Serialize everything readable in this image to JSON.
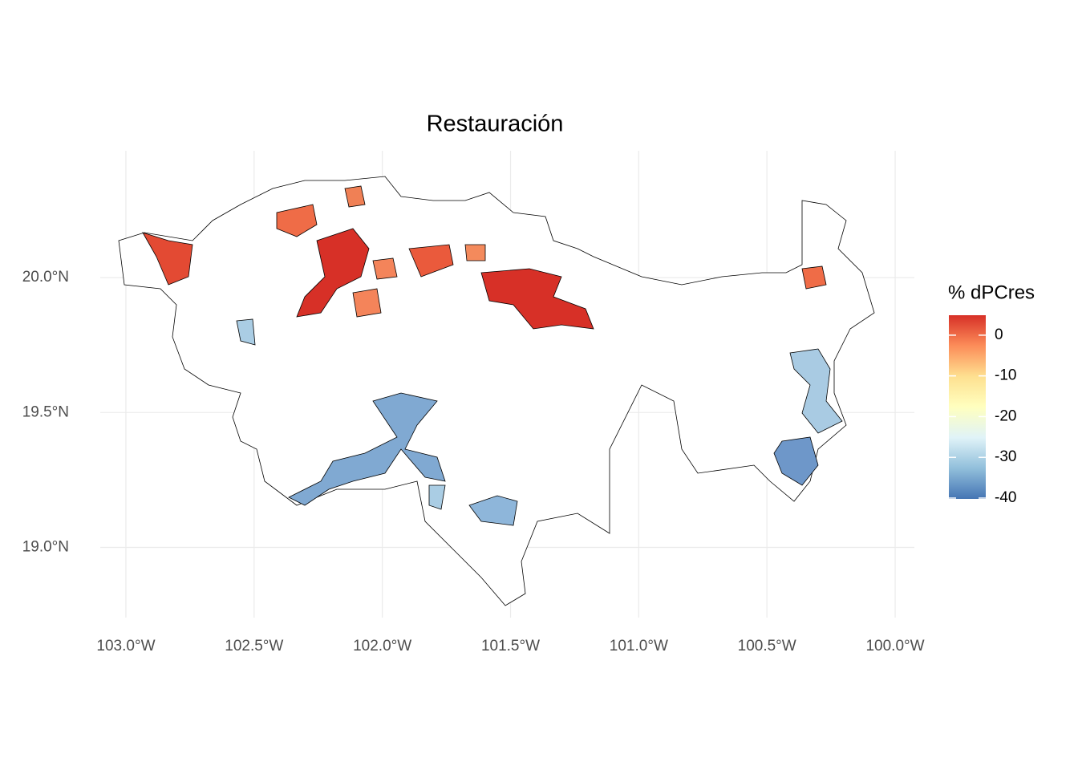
{
  "chart_data": {
    "type": "map",
    "title": "Restauración",
    "xlim": [
      -103.1,
      -99.925
    ],
    "ylim": [
      18.74,
      20.47
    ],
    "xticks": [
      {
        "value": -103,
        "label": "103.0°W"
      },
      {
        "value": -102.5,
        "label": "102.5°W"
      },
      {
        "value": -102,
        "label": "102.0°W"
      },
      {
        "value": -101.5,
        "label": "101.5°W"
      },
      {
        "value": -101,
        "label": "101.0°W"
      },
      {
        "value": -100.5,
        "label": "100.5°W"
      },
      {
        "value": -100,
        "label": "100.0°W"
      }
    ],
    "yticks": [
      {
        "value": 19,
        "label": "19.0°N"
      },
      {
        "value": 19.5,
        "label": "19.5°N"
      },
      {
        "value": 20,
        "label": "20.0°N"
      }
    ],
    "grid": true,
    "legend": {
      "title": "% dPCres",
      "lim": [
        -40.2,
        4.9
      ],
      "ticks": [
        0,
        -10,
        -20,
        -30,
        -40
      ],
      "colors": [
        "#4575b4",
        "#91bfdb",
        "#e0f3f8",
        "#ffffbf",
        "#fee090",
        "#fc8d59",
        "#d73027"
      ]
    }
  }
}
